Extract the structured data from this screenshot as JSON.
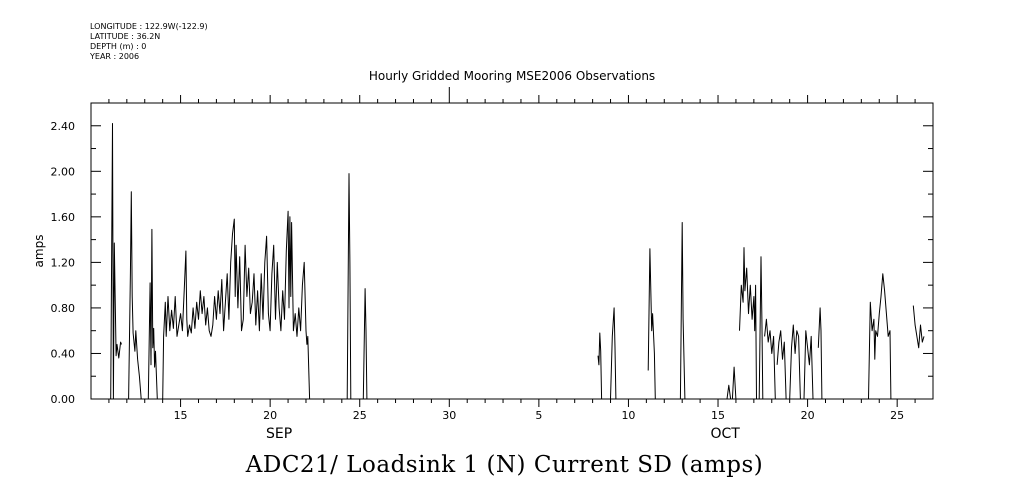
{
  "header": {
    "longitude": "LONGITUDE : 122.9W(-122.9)",
    "latitude": "LATITUDE : 36.2N",
    "depth": "DEPTH (m) : 0",
    "year": "YEAR : 2006"
  },
  "caption": "ADC21/ Loadsink 1 (N) Current SD (amps)",
  "chart_data": {
    "type": "line",
    "title": "Hourly Gridded Mooring MSE2006 Observations",
    "xlabel": "",
    "ylabel": "amps",
    "ylim": [
      0,
      2.6
    ],
    "yticks": [
      0.0,
      0.4,
      0.8,
      1.2,
      1.6,
      2.0,
      2.4
    ],
    "ytick_labels": [
      "0.00",
      "0.40",
      "0.80",
      "1.20",
      "1.60",
      "2.00",
      "2.40"
    ],
    "x_units": "days since Sep 1, 2006",
    "xlim": [
      10,
      57
    ],
    "xticks": [
      {
        "day": 15,
        "label": "15"
      },
      {
        "day": 20,
        "label": "20"
      },
      {
        "day": 25,
        "label": "25"
      },
      {
        "day": 30,
        "label": "30"
      },
      {
        "day": 35,
        "label": "5"
      },
      {
        "day": 40,
        "label": "10"
      },
      {
        "day": 45,
        "label": "15"
      },
      {
        "day": 50,
        "label": "20"
      },
      {
        "day": 55,
        "label": "25"
      }
    ],
    "month_labels": [
      {
        "day": 20.5,
        "label": "SEP"
      },
      {
        "day": 45.4,
        "label": "OCT"
      }
    ],
    "grid": false,
    "series": [
      {
        "name": "",
        "color": "#000000",
        "segments": [
          [
            [
              11.1,
              0.0
            ],
            [
              11.2,
              2.42
            ],
            [
              11.25,
              0.0
            ],
            [
              11.3,
              1.37
            ],
            [
              11.4,
              0.38
            ],
            [
              11.45,
              0.48
            ],
            [
              11.55,
              0.36
            ],
            [
              11.65,
              0.5
            ],
            [
              11.7,
              0.48
            ]
          ],
          [
            [
              12.1,
              0.0
            ],
            [
              12.2,
              1.1
            ],
            [
              12.25,
              1.82
            ],
            [
              12.3,
              0.9
            ],
            [
              12.35,
              0.58
            ],
            [
              12.45,
              0.42
            ],
            [
              12.5,
              0.6
            ],
            [
              12.6,
              0.35
            ],
            [
              12.7,
              0.2
            ],
            [
              12.8,
              0.0
            ]
          ],
          [
            [
              13.2,
              0.0
            ],
            [
              13.3,
              1.02
            ],
            [
              13.35,
              0.3
            ],
            [
              13.4,
              1.49
            ],
            [
              13.45,
              0.45
            ],
            [
              13.5,
              0.62
            ],
            [
              13.55,
              0.28
            ],
            [
              13.6,
              0.42
            ],
            [
              13.7,
              0.0
            ]
          ],
          [
            [
              14.0,
              0.0
            ],
            [
              14.05,
              0.55
            ],
            [
              14.15,
              0.85
            ],
            [
              14.2,
              0.55
            ],
            [
              14.3,
              0.9
            ],
            [
              14.4,
              0.6
            ],
            [
              14.5,
              0.78
            ],
            [
              14.6,
              0.62
            ],
            [
              14.7,
              0.9
            ],
            [
              14.8,
              0.55
            ],
            [
              14.9,
              0.65
            ],
            [
              15.0,
              0.75
            ],
            [
              15.1,
              0.6
            ],
            [
              15.2,
              0.95
            ],
            [
              15.3,
              1.3
            ],
            [
              15.35,
              0.7
            ],
            [
              15.4,
              0.55
            ],
            [
              15.5,
              0.65
            ],
            [
              15.6,
              0.58
            ],
            [
              15.7,
              0.8
            ],
            [
              15.8,
              0.62
            ],
            [
              15.9,
              0.85
            ],
            [
              16.0,
              0.7
            ],
            [
              16.1,
              0.95
            ],
            [
              16.2,
              0.75
            ],
            [
              16.3,
              0.9
            ],
            [
              16.4,
              0.65
            ],
            [
              16.5,
              0.8
            ],
            [
              16.6,
              0.6
            ],
            [
              16.7,
              0.55
            ],
            [
              16.8,
              0.65
            ],
            [
              16.9,
              0.9
            ],
            [
              17.0,
              0.7
            ],
            [
              17.1,
              0.95
            ],
            [
              17.2,
              0.75
            ],
            [
              17.3,
              1.05
            ],
            [
              17.4,
              0.6
            ],
            [
              17.5,
              0.85
            ],
            [
              17.6,
              1.1
            ],
            [
              17.7,
              0.7
            ],
            [
              17.8,
              1.2
            ],
            [
              17.9,
              1.45
            ],
            [
              18.0,
              1.58
            ],
            [
              18.05,
              0.9
            ],
            [
              18.1,
              1.35
            ],
            [
              18.2,
              0.8
            ],
            [
              18.3,
              1.25
            ],
            [
              18.4,
              0.6
            ],
            [
              18.5,
              0.7
            ],
            [
              18.6,
              1.35
            ],
            [
              18.7,
              0.9
            ],
            [
              18.8,
              1.15
            ],
            [
              18.9,
              0.75
            ],
            [
              19.0,
              0.85
            ],
            [
              19.1,
              1.1
            ],
            [
              19.2,
              0.65
            ],
            [
              19.3,
              0.95
            ],
            [
              19.4,
              0.6
            ],
            [
              19.5,
              1.1
            ],
            [
              19.6,
              0.7
            ],
            [
              19.7,
              1.2
            ],
            [
              19.8,
              1.43
            ],
            [
              19.9,
              0.75
            ],
            [
              20.0,
              0.6
            ],
            [
              20.1,
              1.1
            ],
            [
              20.2,
              1.35
            ],
            [
              20.3,
              0.7
            ],
            [
              20.4,
              1.2
            ],
            [
              20.5,
              0.8
            ],
            [
              20.6,
              0.6
            ],
            [
              20.7,
              0.95
            ],
            [
              20.8,
              0.7
            ],
            [
              20.9,
              1.3
            ],
            [
              21.0,
              1.65
            ],
            [
              21.05,
              0.8
            ],
            [
              21.1,
              1.6
            ],
            [
              21.15,
              0.9
            ],
            [
              21.2,
              1.55
            ],
            [
              21.3,
              0.6
            ],
            [
              21.4,
              0.75
            ],
            [
              21.5,
              0.55
            ],
            [
              21.6,
              0.8
            ],
            [
              21.7,
              0.6
            ],
            [
              21.8,
              1.0
            ],
            [
              21.9,
              1.2
            ],
            [
              22.0,
              0.6
            ],
            [
              22.05,
              0.48
            ],
            [
              22.1,
              0.55
            ],
            [
              22.2,
              0.0
            ]
          ],
          [
            [
              24.3,
              0.0
            ],
            [
              24.4,
              1.98
            ],
            [
              24.45,
              1.2
            ],
            [
              24.5,
              0.0
            ]
          ],
          [
            [
              25.2,
              0.0
            ],
            [
              25.3,
              0.97
            ],
            [
              25.35,
              0.6
            ],
            [
              25.4,
              0.0
            ]
          ],
          [
            [
              38.3,
              0.38
            ],
            [
              38.35,
              0.3
            ],
            [
              38.4,
              0.58
            ],
            [
              38.45,
              0.42
            ],
            [
              38.5,
              0.0
            ]
          ],
          [
            [
              39.0,
              0.0
            ],
            [
              39.1,
              0.55
            ],
            [
              39.2,
              0.8
            ],
            [
              39.25,
              0.45
            ],
            [
              39.3,
              0.0
            ]
          ],
          [
            [
              41.1,
              0.25
            ],
            [
              41.2,
              1.32
            ],
            [
              41.3,
              0.6
            ],
            [
              41.35,
              0.75
            ],
            [
              41.45,
              0.4
            ],
            [
              41.5,
              0.0
            ]
          ],
          [
            [
              42.9,
              0.0
            ],
            [
              43.0,
              1.55
            ],
            [
              43.05,
              0.7
            ],
            [
              43.15,
              0.0
            ]
          ],
          [
            [
              45.5,
              0.0
            ],
            [
              45.6,
              0.12
            ],
            [
              45.7,
              0.0
            ]
          ],
          [
            [
              45.8,
              0.0
            ],
            [
              45.9,
              0.28
            ],
            [
              46.0,
              0.0
            ]
          ],
          [
            [
              46.2,
              0.6
            ],
            [
              46.3,
              1.0
            ],
            [
              46.4,
              0.85
            ],
            [
              46.45,
              1.33
            ],
            [
              46.5,
              0.95
            ],
            [
              46.6,
              1.15
            ],
            [
              46.7,
              0.75
            ],
            [
              46.8,
              1.0
            ],
            [
              46.9,
              0.7
            ],
            [
              47.0,
              0.9
            ],
            [
              47.05,
              0.6
            ],
            [
              47.1,
              1.0
            ],
            [
              47.15,
              0.0
            ]
          ],
          [
            [
              47.3,
              0.0
            ],
            [
              47.4,
              1.25
            ],
            [
              47.45,
              0.7
            ],
            [
              47.5,
              0.0
            ]
          ],
          [
            [
              47.6,
              0.55
            ],
            [
              47.7,
              0.7
            ],
            [
              47.8,
              0.5
            ],
            [
              47.9,
              0.6
            ],
            [
              48.0,
              0.4
            ],
            [
              48.1,
              0.55
            ],
            [
              48.2,
              0.0
            ]
          ],
          [
            [
              48.3,
              0.3
            ],
            [
              48.4,
              0.5
            ],
            [
              48.5,
              0.6
            ],
            [
              48.6,
              0.35
            ],
            [
              48.7,
              0.5
            ],
            [
              48.8,
              0.0
            ]
          ],
          [
            [
              49.0,
              0.0
            ],
            [
              49.1,
              0.45
            ],
            [
              49.2,
              0.65
            ],
            [
              49.3,
              0.4
            ],
            [
              49.4,
              0.6
            ],
            [
              49.5,
              0.55
            ],
            [
              49.6,
              0.0
            ]
          ],
          [
            [
              49.8,
              0.0
            ],
            [
              49.9,
              0.6
            ],
            [
              50.0,
              0.45
            ],
            [
              50.1,
              0.3
            ],
            [
              50.2,
              0.55
            ],
            [
              50.3,
              0.0
            ]
          ],
          [
            [
              50.6,
              0.45
            ],
            [
              50.7,
              0.8
            ],
            [
              50.75,
              0.6
            ],
            [
              50.8,
              0.0
            ]
          ],
          [
            [
              53.4,
              0.0
            ],
            [
              53.5,
              0.85
            ],
            [
              53.6,
              0.6
            ],
            [
              53.7,
              0.7
            ],
            [
              53.75,
              0.35
            ],
            [
              53.8,
              0.6
            ],
            [
              53.9,
              0.55
            ],
            [
              54.0,
              0.75
            ],
            [
              54.1,
              0.9
            ],
            [
              54.2,
              1.1
            ],
            [
              54.3,
              0.95
            ],
            [
              54.4,
              0.75
            ],
            [
              54.5,
              0.55
            ],
            [
              54.6,
              0.6
            ],
            [
              54.65,
              0.0
            ]
          ],
          [
            [
              55.9,
              0.82
            ],
            [
              56.0,
              0.65
            ],
            [
              56.1,
              0.55
            ],
            [
              56.2,
              0.45
            ],
            [
              56.3,
              0.65
            ],
            [
              56.4,
              0.5
            ],
            [
              56.5,
              0.55
            ]
          ]
        ]
      }
    ]
  }
}
